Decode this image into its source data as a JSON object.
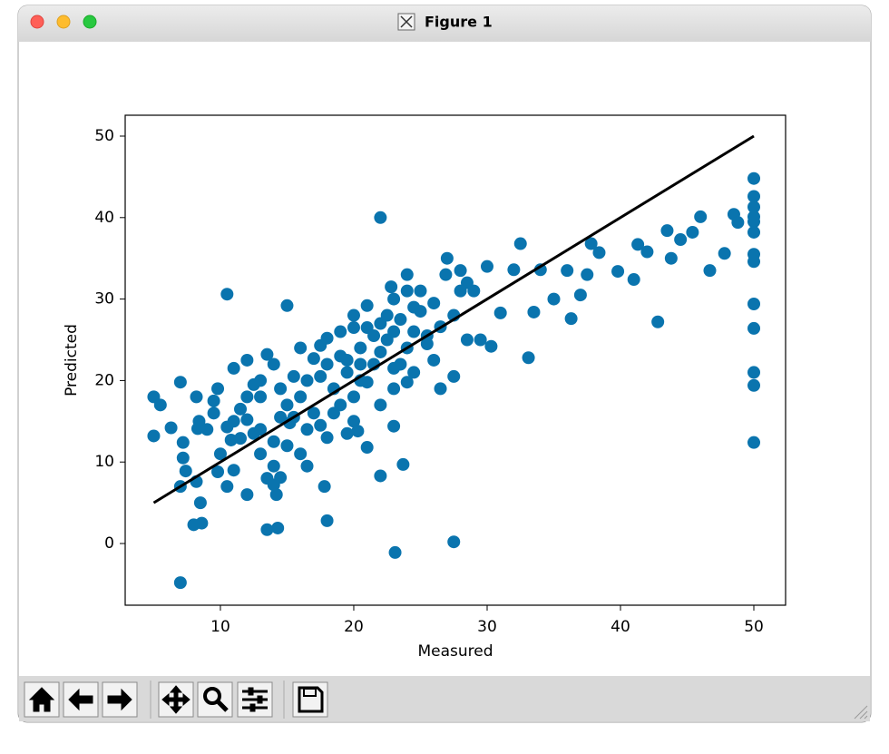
{
  "window": {
    "title": "Figure 1"
  },
  "chart_data": {
    "type": "scatter",
    "x_label": "Measured",
    "y_label": "Predicted",
    "xlim": [
      2.86,
      52.38
    ],
    "ylim": [
      -7.57,
      52.56
    ],
    "xticks": [
      10,
      20,
      30,
      40,
      50
    ],
    "yticks": [
      0,
      10,
      20,
      30,
      40,
      50
    ],
    "grid": false,
    "series": [
      {
        "type": "scatter",
        "color": "#0a74ae",
        "x": [
          7,
          23.1,
          27.5,
          22,
          10.5,
          15,
          50,
          50,
          50,
          50,
          50,
          50,
          50,
          50,
          50,
          50,
          50,
          50,
          50,
          48.5,
          48.8,
          46,
          45.4,
          44.5,
          43.5,
          43.8,
          42.8,
          42,
          41.3,
          41,
          39.8,
          38.4,
          37.8,
          37.5,
          37,
          36.3,
          36,
          35,
          34,
          33.1,
          33.5,
          32.5,
          32,
          31,
          30.3,
          30,
          29,
          28.5,
          28,
          27.5,
          27,
          26.5,
          26,
          25.5,
          27.5,
          28.5,
          29.5,
          47.8,
          46.7,
          26.9,
          28,
          5,
          5,
          5.5,
          6.3,
          7,
          7.2,
          7.2,
          7.4,
          7,
          8,
          8.6,
          8.5,
          8.2,
          8.3,
          8.4,
          8.2,
          9.5,
          9.8,
          9.5,
          9.8,
          10.5,
          10.8,
          11,
          11.5,
          11,
          12,
          12,
          12.5,
          11.5,
          12,
          13,
          13.5,
          14,
          14.2,
          14.5,
          14,
          13.5,
          14.3,
          14,
          15,
          15.5,
          16,
          13.5,
          14,
          13,
          16.5,
          17.8,
          18,
          18,
          17,
          16.5,
          16,
          17.5,
          18,
          19,
          20,
          21,
          22,
          23,
          24,
          24.5,
          25,
          23.5,
          22.5,
          21.5,
          20.5,
          19.5,
          18.5,
          19,
          20,
          21,
          22,
          23.7,
          20.3,
          19.5,
          20.5,
          21.5,
          22.5,
          23,
          24,
          24.5,
          23,
          22,
          23,
          21,
          20,
          18.5,
          17.5,
          16,
          15.5,
          14.5,
          13,
          12,
          10.5,
          9,
          10,
          11,
          12.5,
          15,
          16.5,
          17.5,
          19,
          21,
          22,
          23.5,
          24.5,
          25,
          25.5,
          26,
          24,
          23,
          20.5,
          18,
          14.5,
          13,
          19.5,
          15.2,
          22.8,
          24,
          26.5,
          20,
          17
        ],
        "values": [
          -4.8,
          -1.1,
          0.2,
          40,
          30.6,
          29.2,
          44.8,
          42.6,
          41.3,
          40.1,
          39.5,
          38.2,
          35.5,
          34.6,
          29.4,
          26.4,
          21,
          19.4,
          12.4,
          40.4,
          39.4,
          40.1,
          38.2,
          37.3,
          38.4,
          35,
          27.2,
          35.8,
          36.7,
          32.4,
          33.4,
          35.7,
          36.8,
          33,
          30.5,
          27.6,
          33.5,
          30,
          33.6,
          22.8,
          28.4,
          36.8,
          33.6,
          28.3,
          24.2,
          34,
          31,
          32,
          31,
          28,
          35,
          19,
          22.5,
          24.5,
          20.5,
          25,
          25,
          35.6,
          33.5,
          33,
          33.5,
          18,
          13.2,
          17,
          14.2,
          19.8,
          12.4,
          10.5,
          8.9,
          7,
          2.3,
          2.5,
          5,
          7.6,
          14.1,
          15,
          18,
          17.5,
          19,
          16,
          8.8,
          7,
          12.7,
          15,
          12.9,
          21.5,
          22.5,
          18,
          19.5,
          16.5,
          6,
          11,
          8,
          7.2,
          6,
          8.1,
          9.5,
          1.7,
          1.9,
          12.5,
          12,
          15.5,
          11,
          23.2,
          22,
          20,
          9.5,
          7,
          2.8,
          13,
          16,
          20,
          24,
          24.3,
          25.2,
          26,
          28,
          29.2,
          27,
          30,
          31,
          29,
          31,
          27.5,
          25,
          22,
          20,
          21,
          19,
          17,
          15,
          11.8,
          8.3,
          9.7,
          13.8,
          22.5,
          24,
          25.5,
          28,
          26,
          24,
          21,
          19,
          17,
          14.4,
          19.8,
          18,
          16,
          20.5,
          18,
          20.5,
          19,
          18,
          15.2,
          14.3,
          14,
          11,
          9,
          13.5,
          17,
          14,
          14.5,
          23,
          26.5,
          23.5,
          22,
          26,
          28.5,
          25.5,
          29.5,
          19.8,
          21.5,
          22,
          22,
          15.5,
          14,
          13.5,
          14.8,
          31.5,
          33,
          26.6,
          26.5,
          22.7
        ]
      },
      {
        "type": "line",
        "color": "#000000",
        "x": [
          5,
          50
        ],
        "values": [
          5,
          50
        ]
      }
    ]
  }
}
